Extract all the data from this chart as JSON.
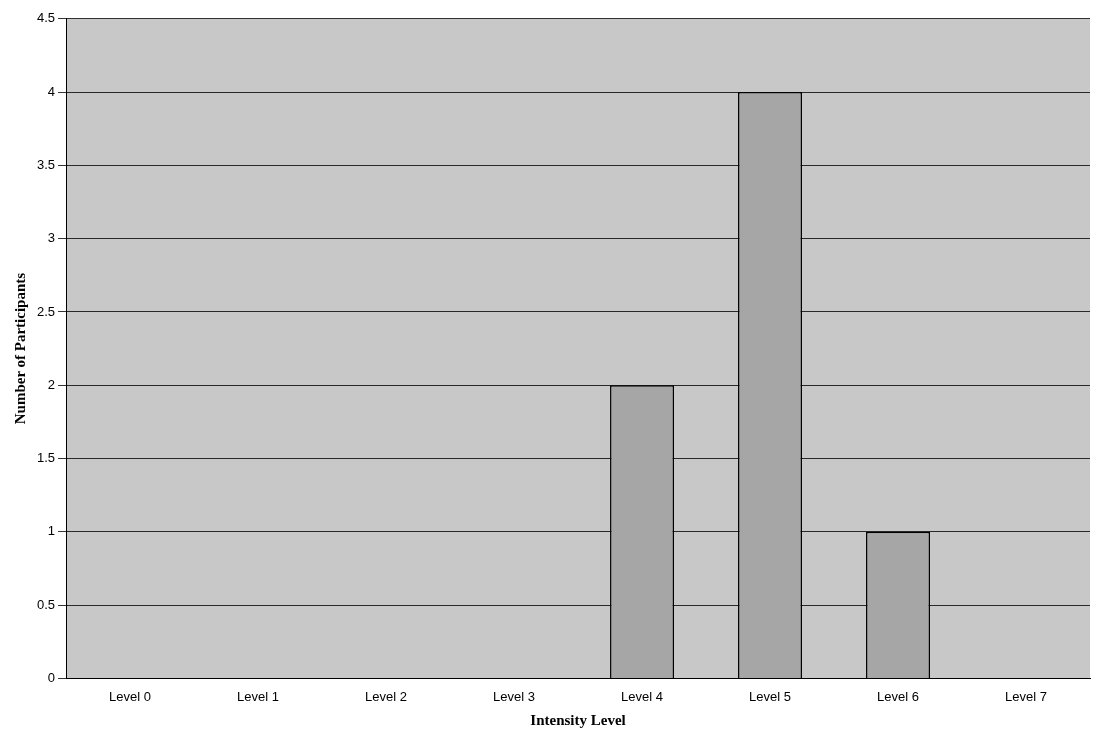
{
  "chart_data": {
    "type": "bar",
    "xlabel": "Intensity Level",
    "ylabel": "Number of Participants",
    "categories": [
      "Level 0",
      "Level 1",
      "Level 2",
      "Level 3",
      "Level 4",
      "Level 5",
      "Level 6",
      "Level 7"
    ],
    "values": [
      0,
      0,
      0,
      0,
      2,
      4,
      1,
      0
    ],
    "color": "#a6a6a6",
    "ylim": [
      0,
      4.5
    ],
    "yticks": [
      0,
      0.5,
      1,
      1.5,
      2,
      2.5,
      3,
      3.5,
      4,
      4.5
    ],
    "grid": "y",
    "legend": false
  }
}
